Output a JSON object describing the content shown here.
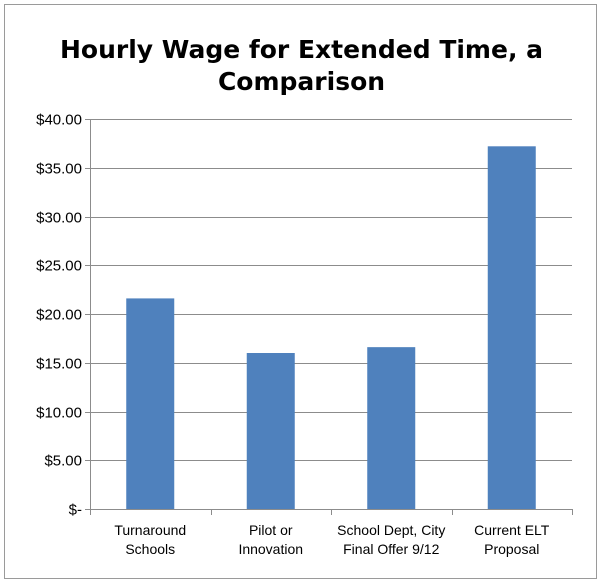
{
  "chart_data": {
    "type": "bar",
    "title_lines": [
      "Hourly Wage for Extended Time, a",
      "Comparison"
    ],
    "categories": [
      [
        "Turnaround",
        "Schools"
      ],
      [
        "Pilot or",
        "Innovation"
      ],
      [
        "School Dept, City",
        "Final Offer 9/12"
      ],
      [
        "Current ELT",
        "Proposal"
      ]
    ],
    "values": [
      21.6,
      16.0,
      16.6,
      37.2
    ],
    "ylim": [
      0,
      40
    ],
    "ytick_labels": [
      "$-",
      "$5.00",
      "$10.00",
      "$15.00",
      "$20.00",
      "$25.00",
      "$30.00",
      "$35.00",
      "$40.00"
    ],
    "grid": true,
    "legend": "none",
    "bar_color": "#4f81bd"
  }
}
